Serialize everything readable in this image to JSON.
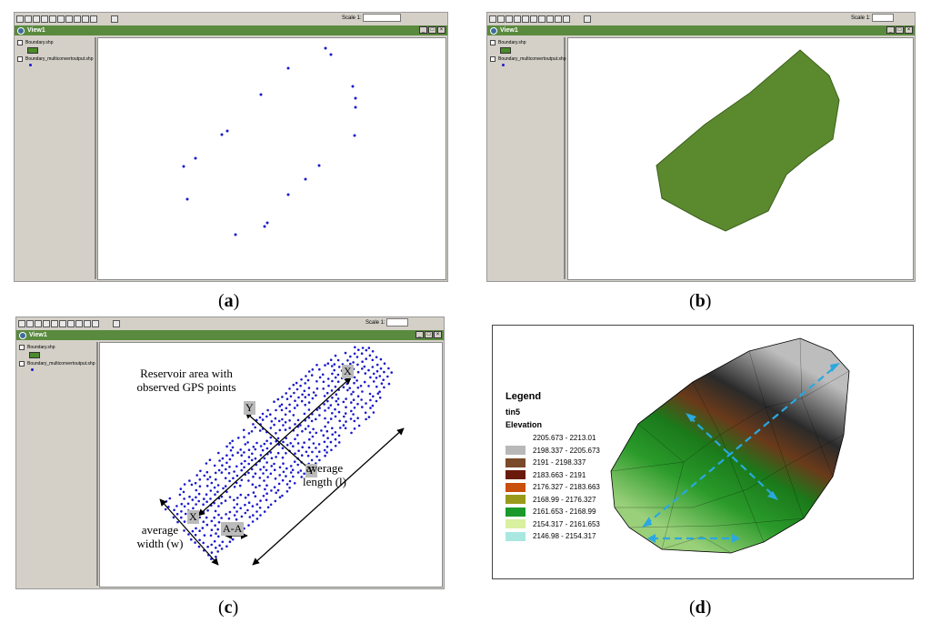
{
  "panels": {
    "a": {
      "caption_letter": "a",
      "view_title": "View1",
      "scale_label": "Scale 1:",
      "theme_1": "Boundary.shp",
      "theme_2": "Boundary_multiconvertoutput.shp"
    },
    "b": {
      "caption_letter": "b",
      "view_title": "View1",
      "scale_label": "Scale 1:",
      "theme_1": "Boundary.shp",
      "theme_2": "Boundary_multiconvertoutput.shp"
    },
    "c": {
      "caption_letter": "c",
      "view_title": "View1",
      "scale_label": "Scale 1:",
      "theme_1": "Boundary.shp",
      "theme_2": "Boundary_multiconvertoutput.shp",
      "annotation_title": "Reservoir area with observed GPS points",
      "label_y": "Y",
      "label_y2": "Y",
      "label_x": "X",
      "label_x2": "X",
      "label_aa": "A-A",
      "average_width": "average width (w)",
      "average_length": "average length (l)"
    },
    "d": {
      "caption_letter": "d",
      "legend_title": "Legend",
      "layer_name": "tin5",
      "field_name": "Elevation",
      "classes": [
        {
          "label": "2205.673 - 2213.01",
          "color": "#ffffff"
        },
        {
          "label": "2198.337 - 2205.673",
          "color": "#b8b8b8"
        },
        {
          "label": "2191 - 2198.337",
          "color": "#7a4a2a"
        },
        {
          "label": "2183.663 - 2191",
          "color": "#6a1a0a"
        },
        {
          "label": "2176.327 - 2183.663",
          "color": "#c8500a"
        },
        {
          "label": "2168.99 - 2176.327",
          "color": "#9a9a1a"
        },
        {
          "label": "2161.653 - 2168.99",
          "color": "#1a9a2a"
        },
        {
          "label": "2154.317 - 2161.653",
          "color": "#d8f0a0"
        },
        {
          "label": "2146.98 - 2154.317",
          "color": "#a8e8e0"
        }
      ]
    }
  },
  "colors": {
    "title_bar": "#5a8a3e",
    "polygon_fill": "#5b8a2e",
    "gps_points": "#1a1acc",
    "arrow_cyan": "#2aa8e0"
  }
}
